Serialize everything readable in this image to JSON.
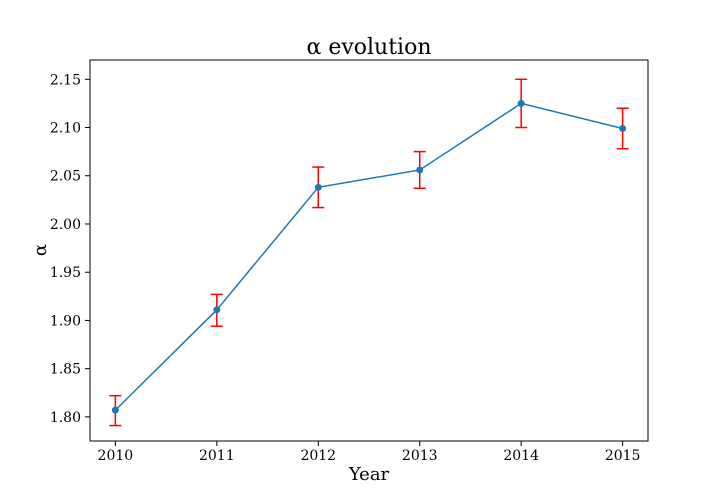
{
  "chart_data": {
    "type": "line",
    "title": "α evolution",
    "xlabel": "Year",
    "ylabel": "α",
    "x": [
      2010,
      2011,
      2012,
      2013,
      2014,
      2015
    ],
    "xticks": [
      "2010",
      "2011",
      "2012",
      "2013",
      "2014",
      "2015"
    ],
    "yticks": [
      "1.80",
      "1.85",
      "1.90",
      "1.95",
      "2.00",
      "2.05",
      "2.10",
      "2.15"
    ],
    "xlim": [
      2009.75,
      2015.25
    ],
    "ylim": [
      1.775,
      2.17
    ],
    "grid": false,
    "series": [
      {
        "values": [
          1.807,
          1.911,
          2.038,
          2.056,
          2.125,
          2.099
        ],
        "error_low": [
          1.791,
          1.894,
          2.017,
          2.037,
          2.1,
          2.078
        ],
        "error_high": [
          1.822,
          1.927,
          2.059,
          2.075,
          2.15,
          2.12
        ],
        "color": "#1f77b4",
        "error_color": "#ff0000"
      }
    ]
  }
}
